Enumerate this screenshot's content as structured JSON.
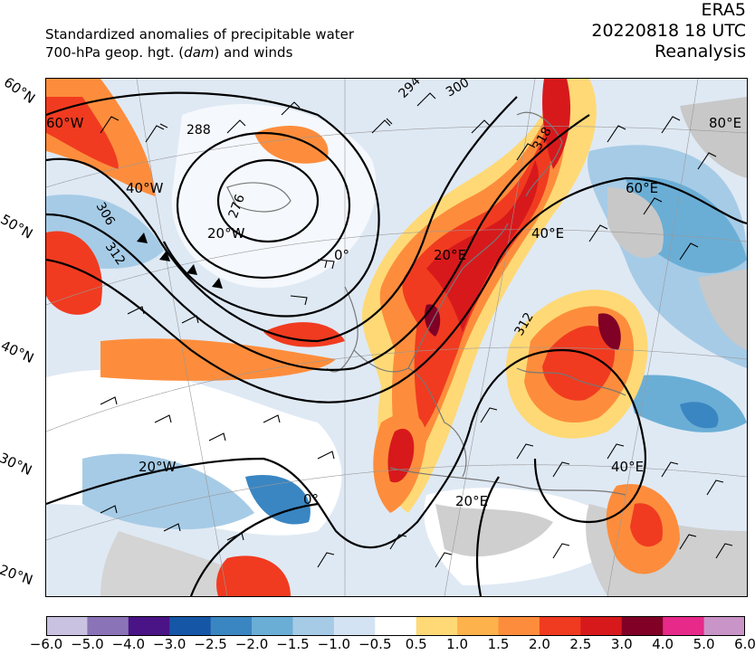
{
  "header": {
    "line1": "Standardized anomalies of precipitable water",
    "line2_pre": "700-hPa geop. hgt. (",
    "line2_unit": "dam",
    "line2_post": ") and winds",
    "source": "ERA5",
    "datetime": "20220818 18 UTC",
    "product": "Reanalysis"
  },
  "lat_labels": [
    "60°N",
    "50°N",
    "40°N",
    "30°N",
    "20°N"
  ],
  "lon_labels": [
    "60°W",
    "40°W",
    "20°W",
    "0°",
    "20°E",
    "40°E",
    "60°E",
    "80°E",
    "20°W",
    "0°",
    "20°E",
    "40°E"
  ],
  "contour_labels": [
    "288",
    "294",
    "300",
    "306",
    "312",
    "276",
    "312",
    "318"
  ],
  "colorbar": {
    "ticks": [
      "−6.0",
      "−5.0",
      "−4.0",
      "−3.0",
      "−2.5",
      "−2.0",
      "−1.5",
      "−1.0",
      "−0.5",
      "0.5",
      "1.0",
      "1.5",
      "2.0",
      "2.5",
      "3.0",
      "4.0",
      "5.0",
      "6.0"
    ],
    "colors": [
      "#c9c2e0",
      "#8b73b8",
      "#4a1486",
      "#1656a6",
      "#3a86c2",
      "#6aaed6",
      "#a6cbe6",
      "#d4e3f3",
      "#ffffff",
      "#fed976",
      "#feb24c",
      "#fd8d3c",
      "#f03b20",
      "#d7191c",
      "#800026",
      "#e7298a",
      "#c994c7"
    ]
  }
}
